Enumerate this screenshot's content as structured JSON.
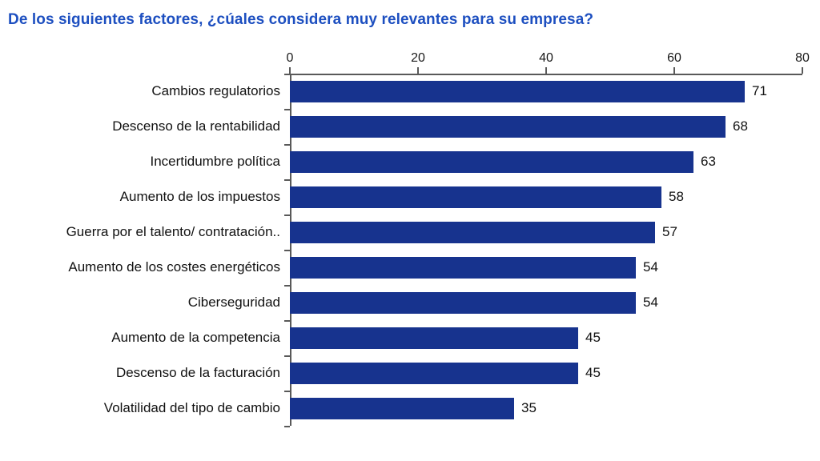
{
  "title": "De los siguientes factores, ¿cúales considera muy relevantes para su empresa?",
  "chart_data": {
    "type": "bar",
    "orientation": "horizontal",
    "title": "De los siguientes factores, ¿cúales considera muy relevantes para su empresa?",
    "categories": [
      "Cambios regulatorios",
      "Descenso de la rentabilidad",
      "Incertidumbre política",
      "Aumento de los impuestos",
      "Guerra por el talento/ contratación..",
      "Aumento de los costes energéticos",
      "Ciberseguridad",
      "Aumento de la competencia",
      "Descenso de la facturación",
      "Volatilidad del tipo de cambio"
    ],
    "values": [
      71,
      68,
      63,
      58,
      57,
      54,
      54,
      45,
      45,
      35
    ],
    "xlim": [
      0,
      80
    ],
    "xticks": [
      0,
      20,
      40,
      60,
      80
    ],
    "grid": "off",
    "legend": "none",
    "bar_color": "#17338e",
    "title_color": "#1d4fc0",
    "axis_color": "#595959"
  }
}
